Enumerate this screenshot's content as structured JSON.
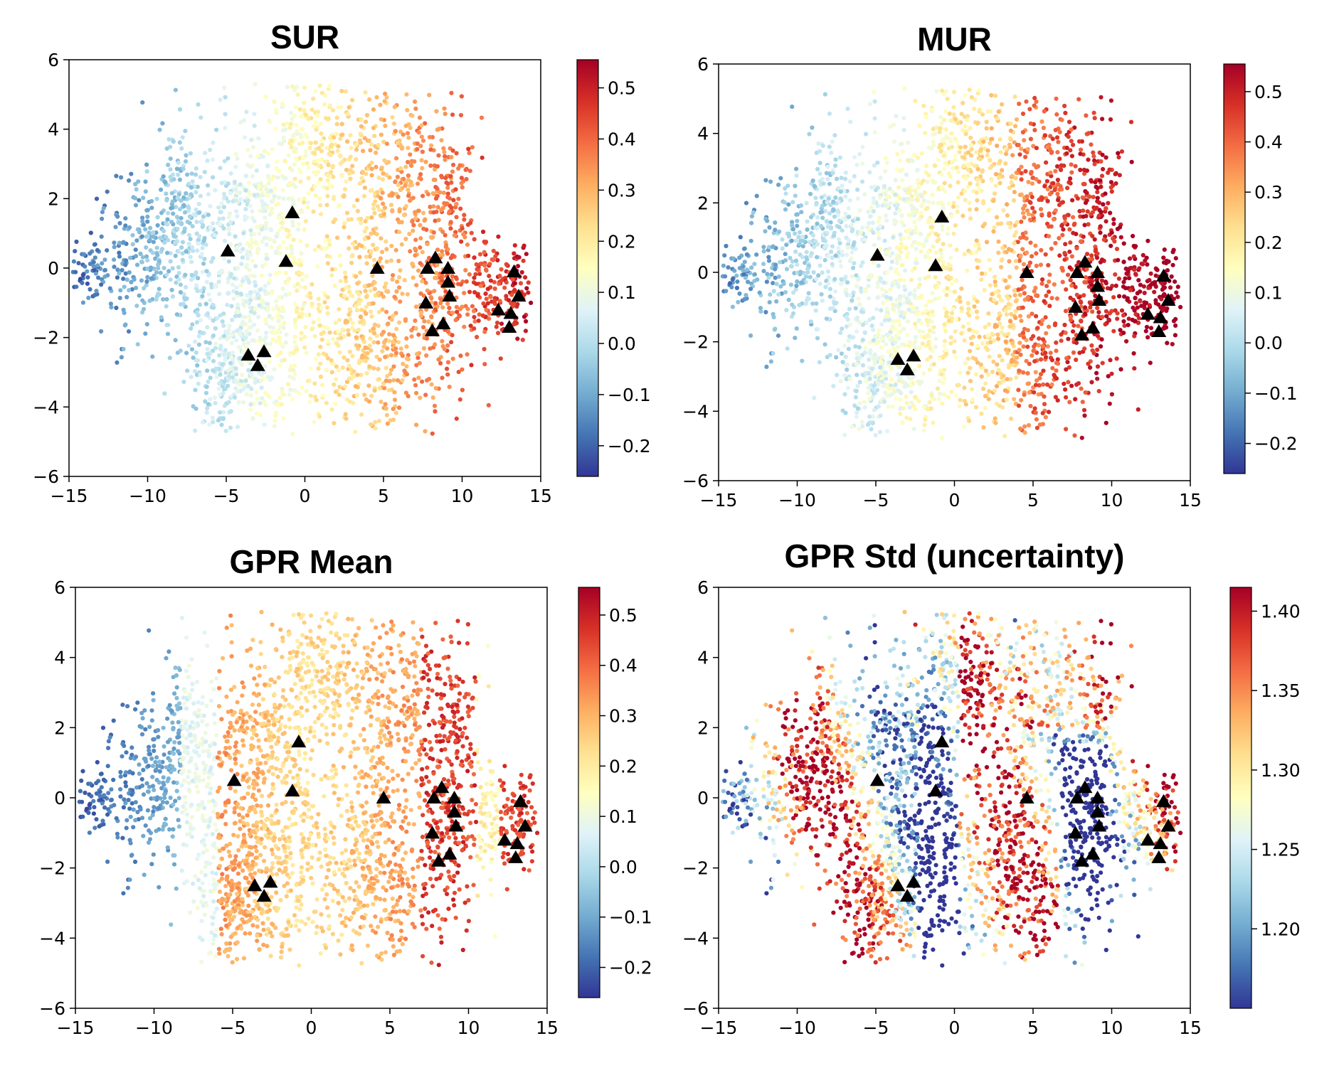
{
  "colors": {
    "rdylbu_r": [
      "#313695",
      "#4575b4",
      "#74add1",
      "#abd9e9",
      "#e0f3f8",
      "#ffffbf",
      "#fee090",
      "#fdae61",
      "#f46d43",
      "#d73027",
      "#a50026"
    ],
    "marker": "#000000"
  },
  "chart_data": [
    {
      "type": "scatter",
      "title": "SUR",
      "xlim": [
        -15,
        15
      ],
      "ylim": [
        -6,
        6
      ],
      "xticks": [
        -15,
        -10,
        -5,
        0,
        5,
        10,
        15
      ],
      "yticks": [
        -6,
        -4,
        -2,
        0,
        2,
        4,
        6
      ],
      "colorbar": {
        "range": [
          -0.26,
          0.555
        ],
        "ticks": [
          -0.2,
          -0.1,
          0.0,
          0.1,
          0.2,
          0.3,
          0.4,
          0.5
        ]
      },
      "point_cloud": {
        "count": 2800,
        "color_by": "x_gradient"
      },
      "marker": "triangle",
      "highlighted_points": [
        {
          "x": -0.8,
          "y": 1.6
        },
        {
          "x": -4.9,
          "y": 0.5
        },
        {
          "x": -1.2,
          "y": 0.2
        },
        {
          "x": 4.6,
          "y": 0.0
        },
        {
          "x": 7.8,
          "y": 0.0
        },
        {
          "x": 8.3,
          "y": 0.3
        },
        {
          "x": 9.1,
          "y": 0.0
        },
        {
          "x": 9.1,
          "y": -0.4
        },
        {
          "x": 9.2,
          "y": -0.8
        },
        {
          "x": 7.7,
          "y": -1.0
        },
        {
          "x": 8.8,
          "y": -1.6
        },
        {
          "x": 8.1,
          "y": -1.8
        },
        {
          "x": 13.3,
          "y": -0.1
        },
        {
          "x": 13.6,
          "y": -0.8
        },
        {
          "x": 12.3,
          "y": -1.2
        },
        {
          "x": 13.1,
          "y": -1.3
        },
        {
          "x": 13.0,
          "y": -1.7
        },
        {
          "x": -3.6,
          "y": -2.5
        },
        {
          "x": -2.6,
          "y": -2.4
        },
        {
          "x": -3.0,
          "y": -2.8
        }
      ]
    },
    {
      "type": "scatter",
      "title": "MUR",
      "xlim": [
        -15,
        15
      ],
      "ylim": [
        -6,
        6
      ],
      "xticks": [
        -15,
        -10,
        -5,
        0,
        5,
        10,
        15
      ],
      "yticks": [
        -6,
        -4,
        -2,
        0,
        2,
        4,
        6
      ],
      "colorbar": {
        "range": [
          -0.26,
          0.555
        ],
        "ticks": [
          -0.2,
          -0.1,
          0.0,
          0.1,
          0.2,
          0.3,
          0.4,
          0.5
        ]
      },
      "point_cloud": {
        "count": 2800,
        "color_by": "x_gradient_strong"
      },
      "marker": "triangle",
      "highlighted_points": [
        {
          "x": -0.8,
          "y": 1.6
        },
        {
          "x": -4.9,
          "y": 0.5
        },
        {
          "x": -1.2,
          "y": 0.2
        },
        {
          "x": 4.6,
          "y": 0.0
        },
        {
          "x": 7.8,
          "y": 0.0
        },
        {
          "x": 8.3,
          "y": 0.3
        },
        {
          "x": 9.1,
          "y": 0.0
        },
        {
          "x": 9.1,
          "y": -0.4
        },
        {
          "x": 9.2,
          "y": -0.8
        },
        {
          "x": 7.7,
          "y": -1.0
        },
        {
          "x": 8.8,
          "y": -1.6
        },
        {
          "x": 8.1,
          "y": -1.8
        },
        {
          "x": 13.3,
          "y": -0.1
        },
        {
          "x": 13.6,
          "y": -0.8
        },
        {
          "x": 12.3,
          "y": -1.2
        },
        {
          "x": 13.1,
          "y": -1.3
        },
        {
          "x": 13.0,
          "y": -1.7
        },
        {
          "x": -3.6,
          "y": -2.5
        },
        {
          "x": -2.6,
          "y": -2.4
        },
        {
          "x": -3.0,
          "y": -2.8
        }
      ]
    },
    {
      "type": "scatter",
      "title": "GPR Mean",
      "xlim": [
        -15,
        15
      ],
      "ylim": [
        -6,
        6
      ],
      "xticks": [
        -15,
        -10,
        -5,
        0,
        5,
        10,
        15
      ],
      "yticks": [
        -6,
        -4,
        -2,
        0,
        2,
        4,
        6
      ],
      "colorbar": {
        "range": [
          -0.26,
          0.555
        ],
        "ticks": [
          -0.2,
          -0.1,
          0.0,
          0.1,
          0.2,
          0.3,
          0.4,
          0.5
        ]
      },
      "point_cloud": {
        "count": 2800,
        "color_by": "gpr_mean"
      },
      "marker": "triangle",
      "highlighted_points": [
        {
          "x": -0.8,
          "y": 1.6
        },
        {
          "x": -4.9,
          "y": 0.5
        },
        {
          "x": -1.2,
          "y": 0.2
        },
        {
          "x": 4.6,
          "y": 0.0
        },
        {
          "x": 7.8,
          "y": 0.0
        },
        {
          "x": 8.3,
          "y": 0.3
        },
        {
          "x": 9.1,
          "y": 0.0
        },
        {
          "x": 9.1,
          "y": -0.4
        },
        {
          "x": 9.2,
          "y": -0.8
        },
        {
          "x": 7.7,
          "y": -1.0
        },
        {
          "x": 8.8,
          "y": -1.6
        },
        {
          "x": 8.1,
          "y": -1.8
        },
        {
          "x": 13.3,
          "y": -0.1
        },
        {
          "x": 13.6,
          "y": -0.8
        },
        {
          "x": 12.3,
          "y": -1.2
        },
        {
          "x": 13.1,
          "y": -1.3
        },
        {
          "x": 13.0,
          "y": -1.7
        },
        {
          "x": -3.6,
          "y": -2.5
        },
        {
          "x": -2.6,
          "y": -2.4
        },
        {
          "x": -3.0,
          "y": -2.8
        }
      ]
    },
    {
      "type": "scatter",
      "title": "GPR Std (uncertainty)",
      "xlim": [
        -15,
        15
      ],
      "ylim": [
        -6,
        6
      ],
      "xticks": [
        -15,
        -10,
        -5,
        0,
        5,
        10,
        15
      ],
      "yticks": [
        -6,
        -4,
        -2,
        0,
        2,
        4,
        6
      ],
      "colorbar": {
        "range": [
          1.15,
          1.415
        ],
        "ticks": [
          1.2,
          1.25,
          1.3,
          1.35,
          1.4
        ],
        "decimals": 2
      },
      "point_cloud": {
        "count": 2800,
        "color_by": "gpr_std"
      },
      "marker": "triangle",
      "highlighted_points": [
        {
          "x": -0.8,
          "y": 1.6
        },
        {
          "x": -4.9,
          "y": 0.5
        },
        {
          "x": -1.2,
          "y": 0.2
        },
        {
          "x": 4.6,
          "y": 0.0
        },
        {
          "x": 7.8,
          "y": 0.0
        },
        {
          "x": 8.3,
          "y": 0.3
        },
        {
          "x": 9.1,
          "y": 0.0
        },
        {
          "x": 9.1,
          "y": -0.4
        },
        {
          "x": 9.2,
          "y": -0.8
        },
        {
          "x": 7.7,
          "y": -1.0
        },
        {
          "x": 8.8,
          "y": -1.6
        },
        {
          "x": 8.1,
          "y": -1.8
        },
        {
          "x": 13.3,
          "y": -0.1
        },
        {
          "x": 13.6,
          "y": -0.8
        },
        {
          "x": 12.3,
          "y": -1.2
        },
        {
          "x": 13.1,
          "y": -1.3
        },
        {
          "x": 13.0,
          "y": -1.7
        },
        {
          "x": -3.6,
          "y": -2.5
        },
        {
          "x": -2.6,
          "y": -2.4
        },
        {
          "x": -3.0,
          "y": -2.8
        }
      ]
    }
  ]
}
